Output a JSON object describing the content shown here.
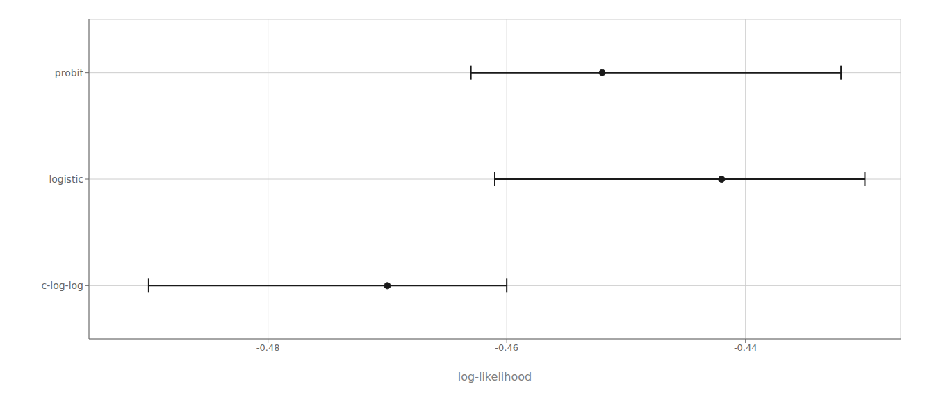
{
  "chart_data": {
    "type": "errorbar",
    "orientation": "horizontal",
    "xlabel": "log-likelihood",
    "categories": [
      "c-log-log",
      "logistic",
      "probit"
    ],
    "values": [
      -0.47,
      -0.442,
      -0.452
    ],
    "ci_low": [
      -0.49,
      -0.461,
      -0.463
    ],
    "ci_high": [
      -0.46,
      -0.43,
      -0.432
    ],
    "color": "#1a1a1a",
    "xlim": [
      -0.495,
      -0.427
    ],
    "xticks": [
      -0.48,
      -0.46,
      -0.44
    ],
    "grid": true
  }
}
